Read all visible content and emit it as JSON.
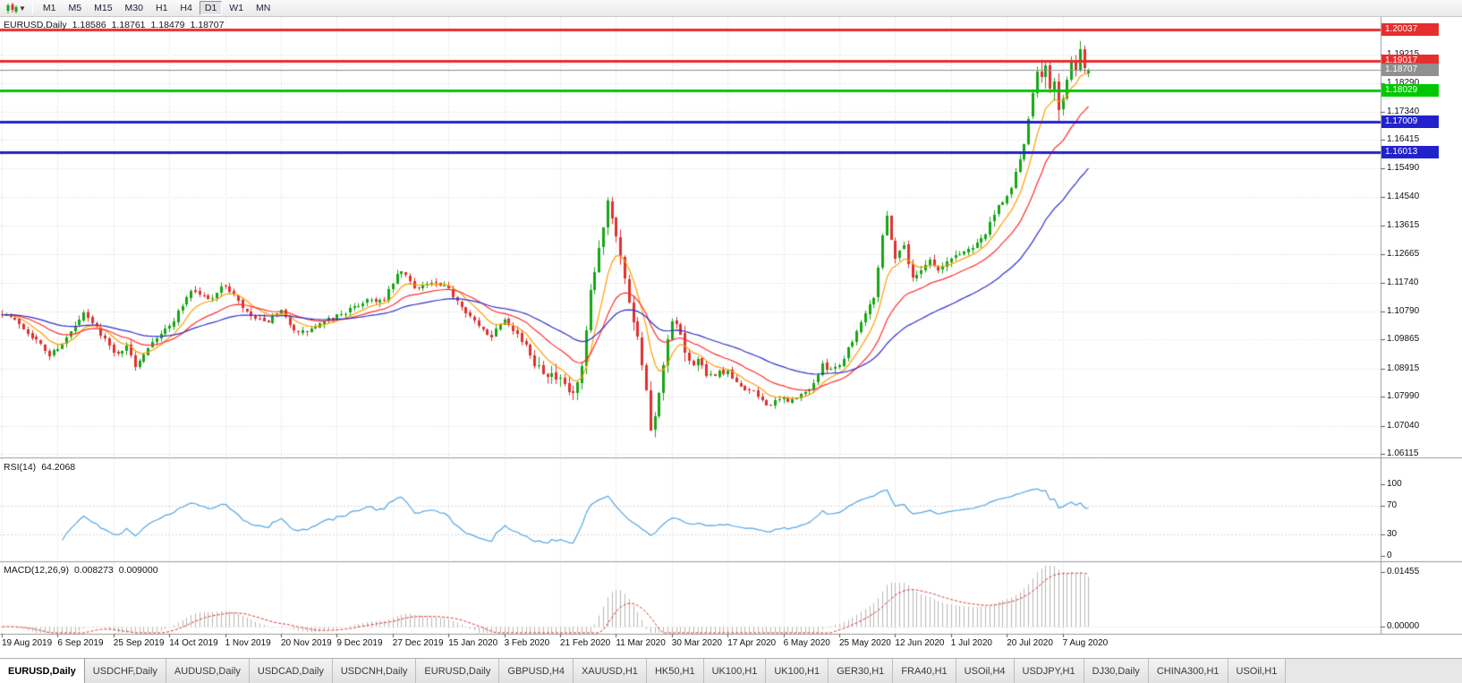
{
  "toolbar": {
    "timeframes": [
      "M1",
      "M5",
      "M15",
      "M30",
      "H1",
      "H4",
      "D1",
      "W1",
      "MN"
    ],
    "active_timeframe": "D1",
    "chart_selector_icon": "candlestick-chart-icon",
    "dropdown_glyph": "▼"
  },
  "price_panel": {
    "header": {
      "symbol": "EURUSD,Daily",
      "open": "1.18586",
      "high": "1.18761",
      "low": "1.18479",
      "close": "1.18707"
    }
  },
  "rsi_panel": {
    "label": "RSI(14)",
    "value": "64.2068",
    "axis_labels": [
      {
        "text": "100",
        "value": 100
      },
      {
        "text": "70",
        "value": 70
      },
      {
        "text": "30",
        "value": 30
      },
      {
        "text": "0",
        "value": 0
      }
    ],
    "level_lines": [
      70,
      30
    ]
  },
  "macd_panel": {
    "label": "MACD(12,26,9)",
    "macd_value": "0.008273",
    "signal_value": "0.009000",
    "axis_labels": [
      {
        "text": "0.01455",
        "value": 0.01455
      },
      {
        "text": "0.00000",
        "value": 0
      }
    ]
  },
  "price_axis": {
    "ticks": [
      {
        "text": "1.19215",
        "value": 1.19215
      },
      {
        "text": "1.18290",
        "value": 1.1829
      },
      {
        "text": "1.17340",
        "value": 1.1734
      },
      {
        "text": "1.16415",
        "value": 1.16415
      },
      {
        "text": "1.15490",
        "value": 1.1549
      },
      {
        "text": "1.14540",
        "value": 1.1454
      },
      {
        "text": "1.13615",
        "value": 1.13615
      },
      {
        "text": "1.12665",
        "value": 1.12665
      },
      {
        "text": "1.11740",
        "value": 1.1174
      },
      {
        "text": "1.10790",
        "value": 1.1079
      },
      {
        "text": "1.09865",
        "value": 1.09865
      },
      {
        "text": "1.08915",
        "value": 1.08915
      },
      {
        "text": "1.07990",
        "value": 1.0799
      },
      {
        "text": "1.07040",
        "value": 1.0704
      },
      {
        "text": "1.06115",
        "value": 1.06115
      }
    ]
  },
  "levels": [
    {
      "text": "1.20037",
      "value": 1.20037,
      "color": "#e62e2e",
      "width": 3
    },
    {
      "text": "1.19017",
      "value": 1.19017,
      "color": "#e62e2e",
      "width": 3
    },
    {
      "text": "1.18707",
      "value": 1.18707,
      "color": "#909090",
      "width": 1
    },
    {
      "text": "1.18029",
      "value": 1.18029,
      "color": "#00c800",
      "width": 3
    },
    {
      "text": "1.17009",
      "value": 1.17009,
      "color": "#2222cc",
      "width": 3
    },
    {
      "text": "1.16013",
      "value": 1.16013,
      "color": "#2222cc",
      "width": 3
    }
  ],
  "tabs": [
    {
      "label": "EURUSD,Daily",
      "active": true
    },
    {
      "label": "USDCHF,Daily",
      "active": false
    },
    {
      "label": "AUDUSD,Daily",
      "active": false
    },
    {
      "label": "USDCAD,Daily",
      "active": false
    },
    {
      "label": "USDCNH,Daily",
      "active": false
    },
    {
      "label": "EURUSD,Daily",
      "active": false
    },
    {
      "label": "GBPUSD,H4",
      "active": false
    },
    {
      "label": "XAUUSD,H1",
      "active": false
    },
    {
      "label": "HK50,H1",
      "active": false
    },
    {
      "label": "UK100,H1",
      "active": false
    },
    {
      "label": "UK100,H1",
      "active": false
    },
    {
      "label": "GER30,H1",
      "active": false
    },
    {
      "label": "FRA40,H1",
      "active": false
    },
    {
      "label": "USOil,H4",
      "active": false
    },
    {
      "label": "USDJPY,H1",
      "active": false
    },
    {
      "label": "DJ30,Daily",
      "active": false
    },
    {
      "label": "CHINA300,H1",
      "active": false
    },
    {
      "label": "USOil,H1",
      "active": false
    }
  ],
  "chart_data": {
    "type": "candlestick",
    "symbol": "EURUSD",
    "timeframe": "Daily",
    "current_ohlc": {
      "open": 1.18586,
      "high": 1.18761,
      "low": 1.18479,
      "close": 1.18707
    },
    "ylim": [
      1.06,
      1.2045
    ],
    "candle_count": 254,
    "label_step": 13,
    "x_labels": [
      "19 Aug 2019",
      "6 Sep 2019",
      "25 Sep 2019",
      "14 Oct 2019",
      "1 Nov 2019",
      "20 Nov 2019",
      "9 Dec 2019",
      "27 Dec 2019",
      "15 Jan 2020",
      "3 Feb 2020",
      "21 Feb 2020",
      "11 Mar 2020",
      "30 Mar 2020",
      "17 Apr 2020",
      "6 May 2020",
      "25 May 2020",
      "12 Jun 2020",
      "1 Jul 2020",
      "20 Jul 2020",
      "7 Aug 2020"
    ],
    "price_anchors": [
      [
        0,
        1.1077
      ],
      [
        4,
        1.104
      ],
      [
        7,
        1.1
      ],
      [
        11,
        1.0935
      ],
      [
        15,
        1.099
      ],
      [
        19,
        1.107
      ],
      [
        23,
        1.101
      ],
      [
        26,
        1.094
      ],
      [
        29,
        1.0962
      ],
      [
        31,
        1.0902
      ],
      [
        35,
        1.0985
      ],
      [
        39,
        1.103
      ],
      [
        44,
        1.115
      ],
      [
        48,
        1.112
      ],
      [
        52,
        1.1165
      ],
      [
        55,
        1.111
      ],
      [
        57,
        1.107
      ],
      [
        61,
        1.104
      ],
      [
        65,
        1.1075
      ],
      [
        69,
        1.1005
      ],
      [
        72,
        1.102
      ],
      [
        78,
        1.1065
      ],
      [
        82,
        1.109
      ],
      [
        85,
        1.112
      ],
      [
        89,
        1.1112
      ],
      [
        91,
        1.1175
      ],
      [
        93,
        1.121
      ],
      [
        96,
        1.116
      ],
      [
        100,
        1.1172
      ],
      [
        104,
        1.115
      ],
      [
        107,
        1.11
      ],
      [
        111,
        1.1025
      ],
      [
        114,
        1.1002
      ],
      [
        117,
        1.106
      ],
      [
        120,
        1.1005
      ],
      [
        124,
        1.0915
      ],
      [
        127,
        1.088
      ],
      [
        130,
        1.0845
      ],
      [
        133,
        1.08
      ],
      [
        135,
        1.0885
      ],
      [
        137,
        1.113
      ],
      [
        139,
        1.128
      ],
      [
        141,
        1.145
      ],
      [
        143,
        1.134
      ],
      [
        145,
        1.118
      ],
      [
        147,
        1.106
      ],
      [
        149,
        1.092
      ],
      [
        151,
        1.069
      ],
      [
        152,
        1.0725
      ],
      [
        153,
        1.08
      ],
      [
        155,
        1.098
      ],
      [
        156,
        1.104
      ],
      [
        158,
        1.1
      ],
      [
        160,
        1.0905
      ],
      [
        162,
        1.093
      ],
      [
        164,
        1.0862
      ],
      [
        167,
        1.088
      ],
      [
        169,
        1.0875
      ],
      [
        171,
        1.084
      ],
      [
        174,
        1.082
      ],
      [
        177,
        1.0788
      ],
      [
        179,
        1.0772
      ],
      [
        182,
        1.0795
      ],
      [
        184,
        1.0786
      ],
      [
        187,
        1.0812
      ],
      [
        189,
        1.0845
      ],
      [
        191,
        1.09
      ],
      [
        193,
        1.0895
      ],
      [
        195,
        1.0902
      ],
      [
        197,
        1.096
      ],
      [
        199,
        1.1012
      ],
      [
        201,
        1.108
      ],
      [
        203,
        1.1132
      ],
      [
        205,
        1.133
      ],
      [
        206,
        1.139
      ],
      [
        208,
        1.1255
      ],
      [
        210,
        1.13
      ],
      [
        212,
        1.1182
      ],
      [
        214,
        1.1222
      ],
      [
        216,
        1.125
      ],
      [
        218,
        1.1212
      ],
      [
        221,
        1.1252
      ],
      [
        223,
        1.127
      ],
      [
        225,
        1.1282
      ],
      [
        227,
        1.131
      ],
      [
        229,
        1.1332
      ],
      [
        231,
        1.14
      ],
      [
        233,
        1.1432
      ],
      [
        234,
        1.1452
      ],
      [
        236,
        1.153
      ],
      [
        238,
        1.1632
      ],
      [
        239,
        1.17
      ]
    ],
    "tail_candles": [
      [
        1.172,
        1.1808,
        1.171,
        1.1795
      ],
      [
        1.1795,
        1.1882,
        1.178,
        1.1865
      ],
      [
        1.1865,
        1.1905,
        1.183,
        1.1848
      ],
      [
        1.1848,
        1.1902,
        1.181,
        1.1885
      ],
      [
        1.1885,
        1.1898,
        1.1795,
        1.181
      ],
      [
        1.181,
        1.1845,
        1.177,
        1.1835
      ],
      [
        1.1835,
        1.186,
        1.17,
        1.1742
      ],
      [
        1.1742,
        1.179,
        1.1722,
        1.1778
      ],
      [
        1.1778,
        1.185,
        1.177,
        1.184
      ],
      [
        1.184,
        1.1916,
        1.1832,
        1.1905
      ],
      [
        1.1905,
        1.192,
        1.185,
        1.1872
      ],
      [
        1.1872,
        1.1966,
        1.1865,
        1.194
      ],
      [
        1.194,
        1.1952,
        1.186,
        1.1878
      ],
      [
        1.18586,
        1.18761,
        1.18479,
        1.18707
      ]
    ],
    "ma_lines": [
      {
        "name": "fast",
        "period": 8,
        "color": "#ff9d00"
      },
      {
        "name": "medium",
        "period": 20,
        "color": "#ff2e2e"
      },
      {
        "name": "slow",
        "period": 45,
        "color": "#3030cc"
      }
    ],
    "rsi": {
      "period": 14,
      "current": 64.2068,
      "line_color": "#53a6e3"
    },
    "macd": {
      "fast": 12,
      "slow": 26,
      "signal_period": 9,
      "current": 0.008273,
      "signal_current": 0.009,
      "histogram_color": "#b6b6b6",
      "signal_color": "#e03131"
    },
    "colors": {
      "bull": "#17a517",
      "bear": "#e03030",
      "grid": "#d8d8d8",
      "separator": "#9a9a9a"
    }
  }
}
